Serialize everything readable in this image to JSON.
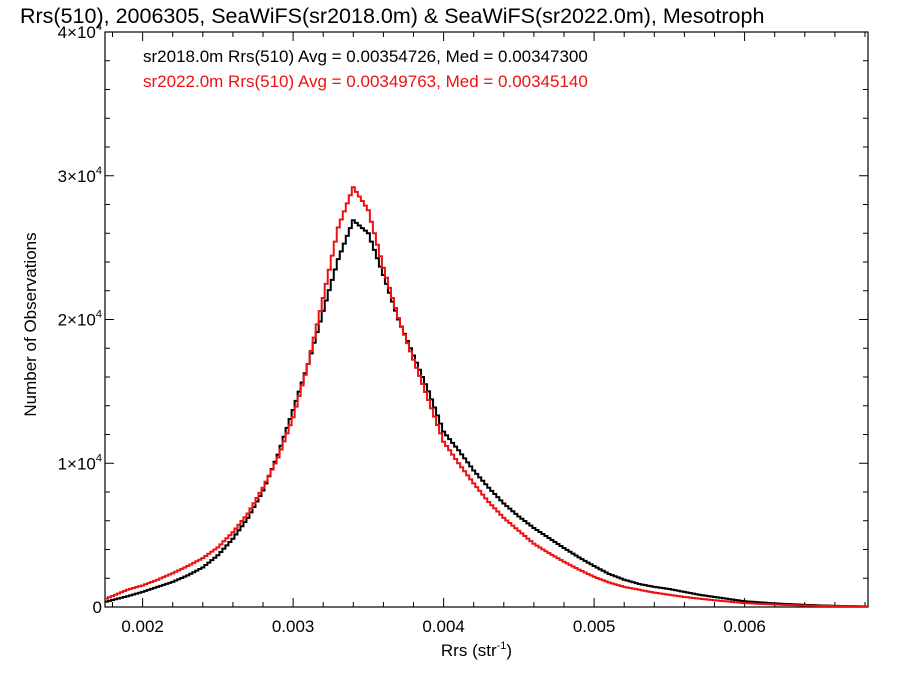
{
  "chart_data": {
    "type": "line",
    "title": "Rrs(510), 2006305, SeaWiFS(sr2018.0m) & SeaWiFS(sr2022.0m), Mesotroph",
    "xlabel": {
      "base": "Rrs (str",
      "sup": "-1",
      "tail": ")"
    },
    "ylabel": "Number of Observations",
    "xlim": [
      0.00175,
      0.00682
    ],
    "ylim": [
      0,
      40000
    ],
    "x_ticks": [
      {
        "value": 0.002,
        "label": "0.002"
      },
      {
        "value": 0.003,
        "label": "0.003"
      },
      {
        "value": 0.004,
        "label": "0.004"
      },
      {
        "value": 0.005,
        "label": "0.005"
      },
      {
        "value": 0.006,
        "label": "0.006"
      }
    ],
    "y_ticks": [
      {
        "value": 0,
        "label": "0",
        "exp": ""
      },
      {
        "value": 10000,
        "label": "1×10",
        "exp": "4"
      },
      {
        "value": 20000,
        "label": "2×10",
        "exp": "4"
      },
      {
        "value": 30000,
        "label": "3×10",
        "exp": "4"
      },
      {
        "value": 40000,
        "label": "4×10",
        "exp": "4"
      }
    ],
    "grid": false,
    "legend_position": "top-left",
    "series": [
      {
        "name": "sr2018.0m",
        "legend": "sr2018.0m Rrs(510) Avg = 0.00354726, Med = 0.00347300",
        "color": "#000000",
        "x": [
          0.00175,
          0.0019,
          0.002,
          0.0021,
          0.0022,
          0.0023,
          0.0024,
          0.0025,
          0.0026,
          0.0027,
          0.0028,
          0.0029,
          0.003,
          0.0031,
          0.0032,
          0.0033,
          0.0034,
          0.0035,
          0.0036,
          0.0037,
          0.0038,
          0.0039,
          0.004,
          0.0041,
          0.0042,
          0.0043,
          0.0044,
          0.0045,
          0.0046,
          0.0047,
          0.0048,
          0.0049,
          0.005,
          0.0051,
          0.0052,
          0.0053,
          0.0054,
          0.0055,
          0.0056,
          0.0057,
          0.0058,
          0.0059,
          0.006,
          0.0062,
          0.0064,
          0.0066,
          0.00682
        ],
        "y": [
          350,
          750,
          1050,
          1400,
          1750,
          2200,
          2750,
          3600,
          4750,
          6200,
          8100,
          10600,
          13700,
          16900,
          20600,
          24200,
          26900,
          26000,
          23100,
          20000,
          17500,
          15000,
          12200,
          10900,
          9500,
          8300,
          7200,
          6300,
          5500,
          4800,
          4100,
          3450,
          2850,
          2300,
          1900,
          1600,
          1400,
          1250,
          1050,
          850,
          700,
          550,
          400,
          250,
          150,
          80,
          40
        ]
      },
      {
        "name": "sr2022.0m",
        "legend": "sr2022.0m Rrs(510) Avg = 0.00349763, Med = 0.00345140",
        "color": "#ee1111",
        "x": [
          0.00175,
          0.0019,
          0.002,
          0.0021,
          0.0022,
          0.0023,
          0.0024,
          0.0025,
          0.0026,
          0.0027,
          0.0028,
          0.0029,
          0.003,
          0.0031,
          0.0032,
          0.0033,
          0.0034,
          0.0035,
          0.0036,
          0.0037,
          0.0038,
          0.0039,
          0.004,
          0.0041,
          0.0042,
          0.0043,
          0.0044,
          0.0045,
          0.0046,
          0.0047,
          0.0048,
          0.0049,
          0.005,
          0.0051,
          0.0052,
          0.0053,
          0.0054,
          0.0055,
          0.0056,
          0.0057,
          0.0058,
          0.0059,
          0.006,
          0.0062,
          0.0064,
          0.0066,
          0.00682
        ],
        "y": [
          550,
          1200,
          1500,
          1900,
          2350,
          2850,
          3400,
          4150,
          5200,
          6500,
          8300,
          10400,
          13200,
          16900,
          21500,
          26400,
          29200,
          27600,
          23600,
          20100,
          17200,
          14400,
          11500,
          10000,
          8600,
          7300,
          6200,
          5300,
          4400,
          3750,
          3150,
          2600,
          2100,
          1700,
          1400,
          1200,
          1000,
          850,
          700,
          580,
          470,
          370,
          270,
          170,
          100,
          60,
          40
        ]
      }
    ]
  }
}
